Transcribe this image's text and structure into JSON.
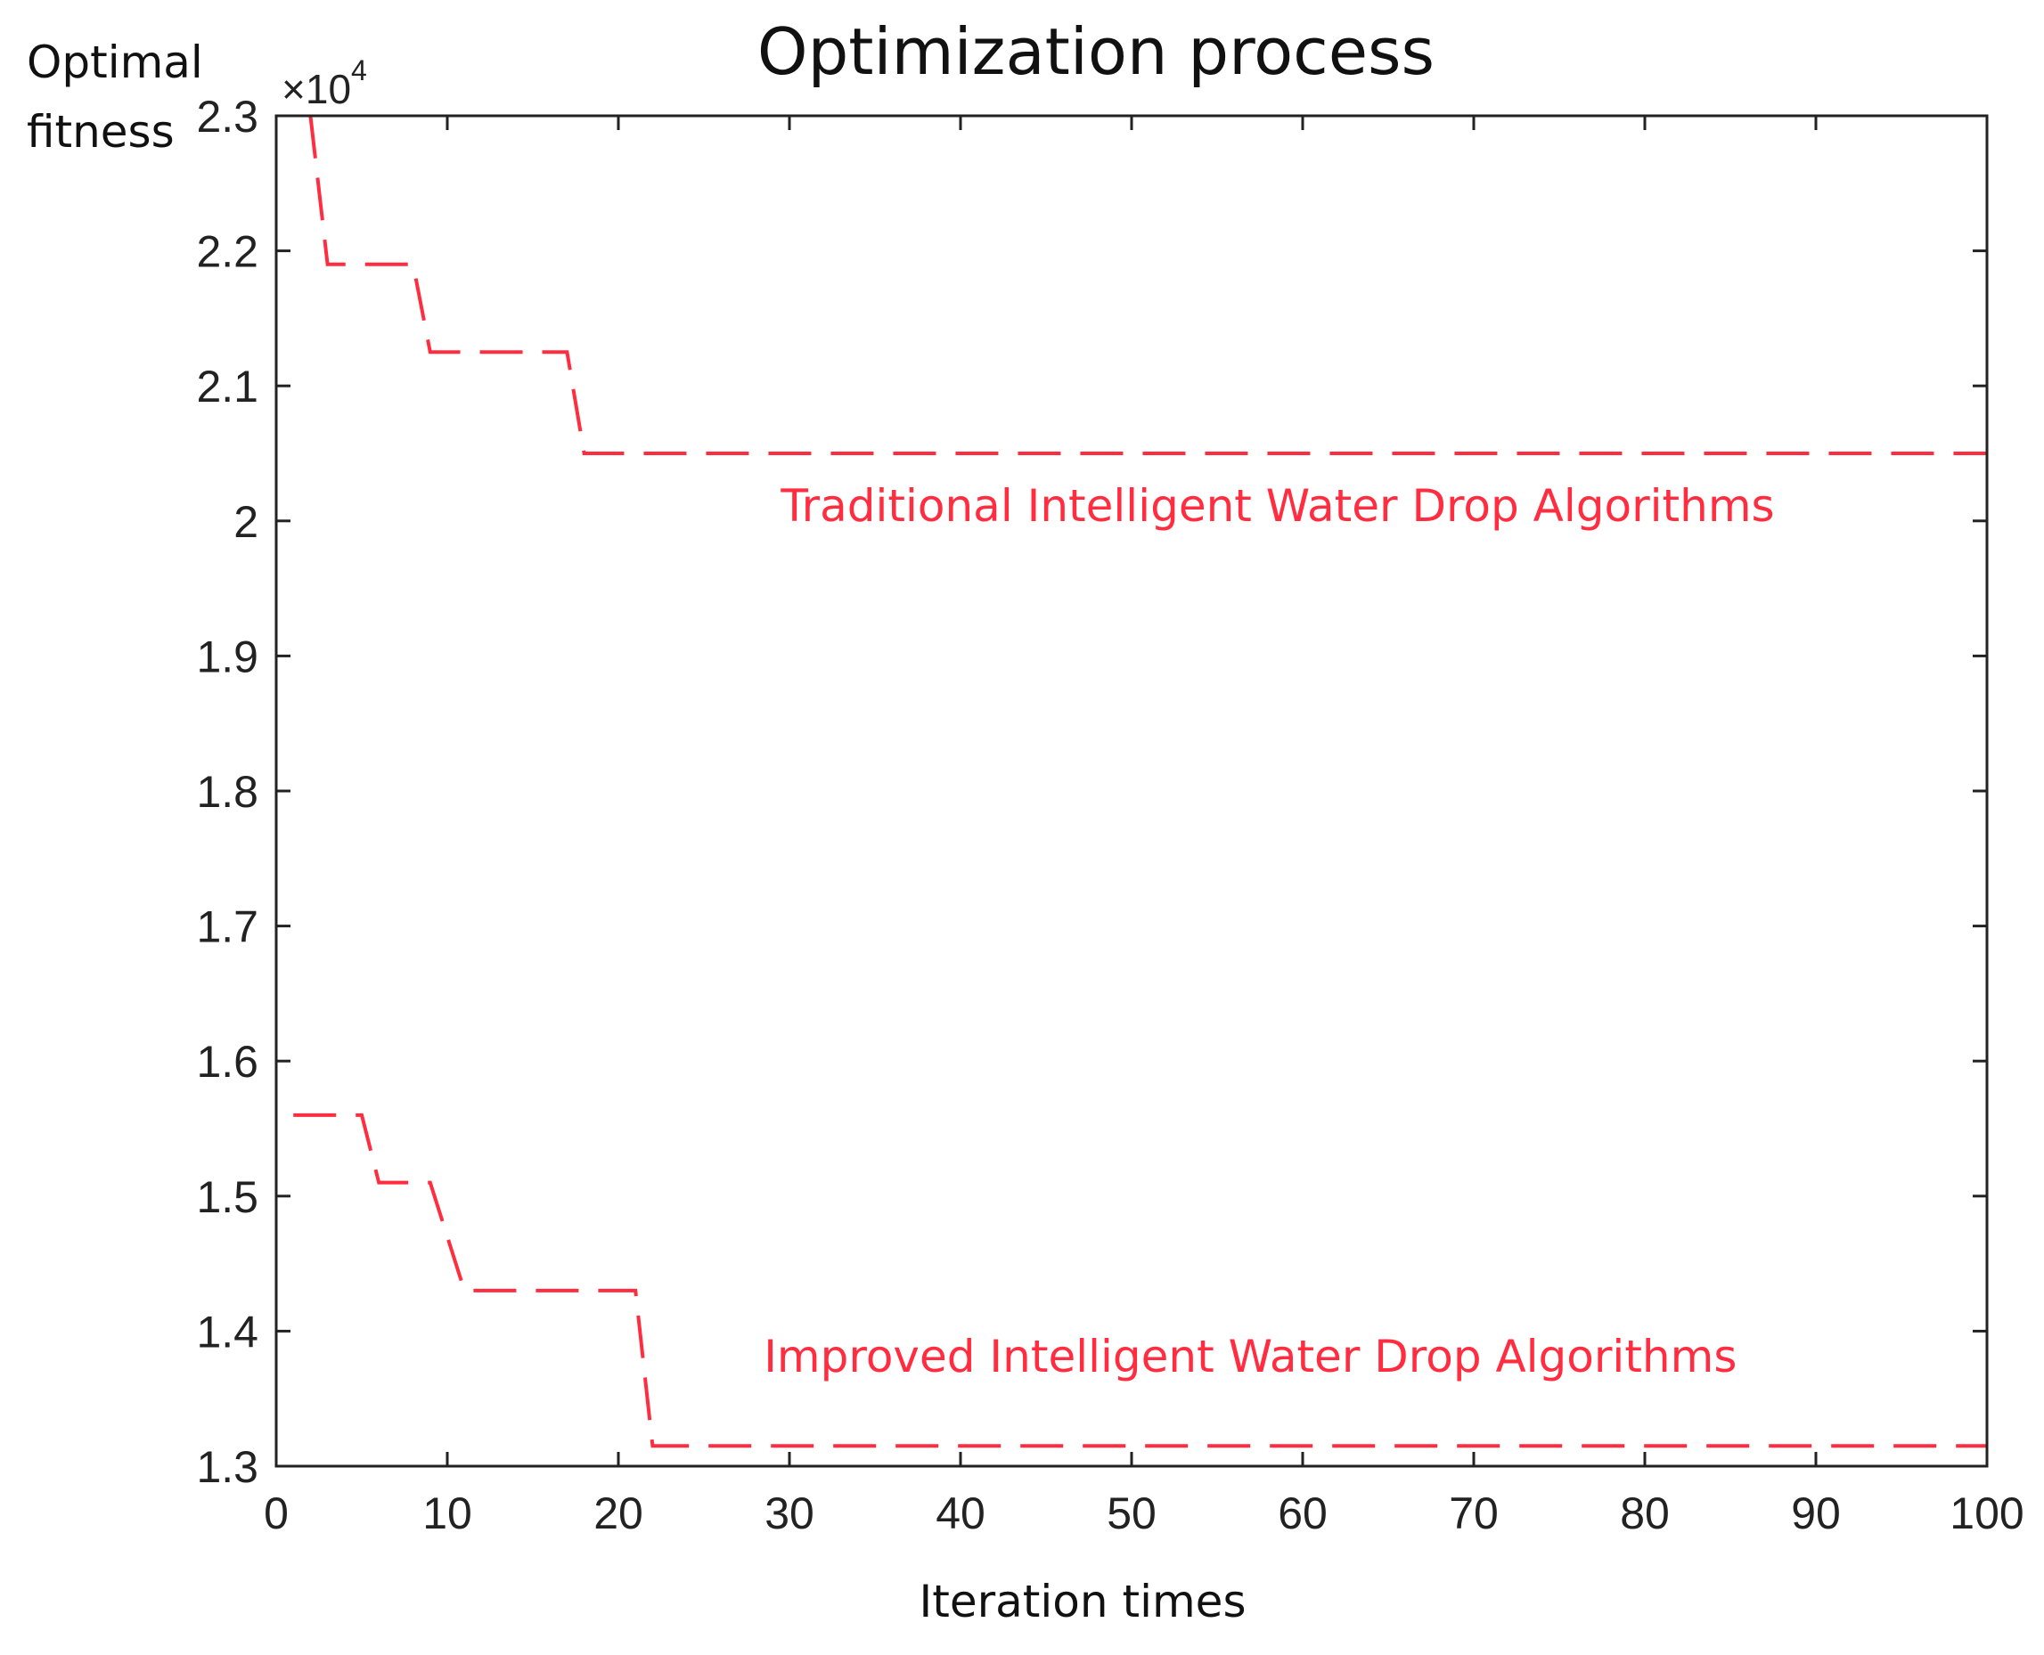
{
  "chart_data": {
    "type": "line",
    "title": "Optimization process",
    "xlabel": "Iteration times",
    "ylabel": [
      "Optimal",
      "fitness"
    ],
    "y_multiplier": {
      "base": "×10",
      "exponent": "4"
    },
    "xlim": [
      0,
      100
    ],
    "ylim": [
      1.3,
      2.3
    ],
    "x_ticks": [
      0,
      10,
      20,
      30,
      40,
      50,
      60,
      70,
      80,
      90,
      100
    ],
    "y_ticks": [
      1.3,
      1.4,
      1.5,
      1.6,
      1.7,
      1.8,
      1.9,
      2,
      2.1,
      2.2,
      2.3
    ],
    "y_tick_labels": [
      "1.3",
      "1.4",
      "1.5",
      "1.6",
      "1.7",
      "1.8",
      "1.9",
      "2",
      "2.1",
      "2.2",
      "2.3"
    ],
    "series": [
      {
        "name": "Traditional Intelligent Water Drop Algorithms",
        "color": "#ff2d3f",
        "style": "dashed",
        "x": [
          2,
          3,
          8,
          9,
          17,
          18,
          100
        ],
        "y": [
          2.3,
          2.19,
          2.19,
          2.125,
          2.125,
          2.05,
          2.05
        ]
      },
      {
        "name": "Improved Intelligent Water Drop Algorithms",
        "color": "#ff2d3f",
        "style": "dashed",
        "x": [
          1,
          5,
          6,
          9,
          11,
          21,
          22,
          100
        ],
        "y": [
          1.56,
          1.56,
          1.51,
          1.51,
          1.43,
          1.43,
          1.315,
          1.315
        ]
      }
    ],
    "annotations": [
      {
        "text": "Traditional Intelligent Water Drop Algorithms",
        "x": 29.5,
        "y": 2.0,
        "color": "#ff2d3f"
      },
      {
        "text": "Improved Intelligent Water Drop Algorithms",
        "x": 28.5,
        "y": 1.37,
        "color": "#ff2d3f"
      }
    ]
  }
}
